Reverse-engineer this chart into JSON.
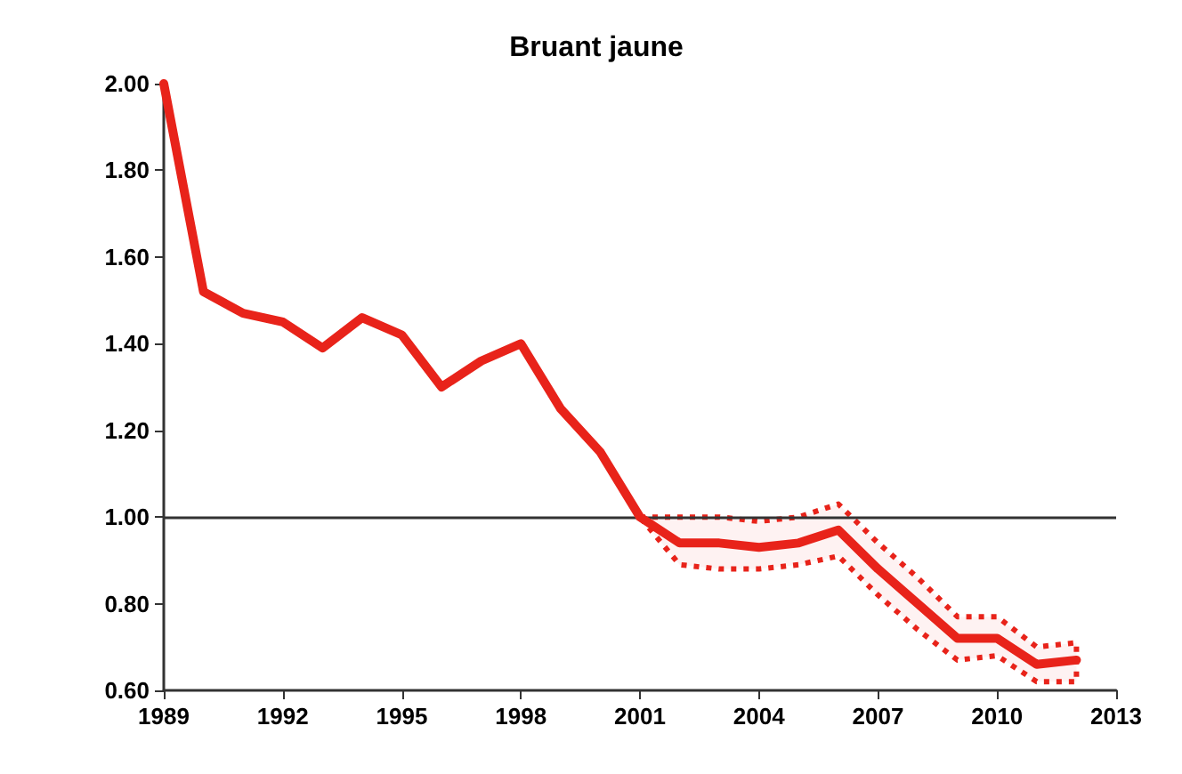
{
  "chart_data": {
    "type": "line",
    "title": "Bruant jaune",
    "x": [
      1989,
      1990,
      1991,
      1992,
      1993,
      1994,
      1995,
      1996,
      1997,
      1998,
      1999,
      2000,
      2001,
      2002,
      2003,
      2004,
      2005,
      2006,
      2007,
      2008,
      2009,
      2010,
      2011,
      2012
    ],
    "series": [
      {
        "color": "#e8231a",
        "values": [
          2.0,
          1.52,
          1.47,
          1.45,
          1.39,
          1.46,
          1.42,
          1.3,
          1.36,
          1.4,
          1.25,
          1.15,
          1.0,
          0.94,
          0.94,
          0.93,
          0.94,
          0.97,
          0.88,
          0.8,
          0.72,
          0.72,
          0.66,
          0.67
        ],
        "lower": [
          null,
          null,
          null,
          null,
          null,
          null,
          null,
          null,
          null,
          null,
          null,
          null,
          1.0,
          0.89,
          0.88,
          0.88,
          0.89,
          0.91,
          0.82,
          0.74,
          0.67,
          0.68,
          0.62,
          0.62
        ],
        "upper": [
          null,
          null,
          null,
          null,
          null,
          null,
          null,
          null,
          null,
          null,
          null,
          null,
          1.0,
          1.0,
          1.0,
          0.99,
          1.0,
          1.03,
          0.94,
          0.86,
          0.77,
          0.77,
          0.7,
          0.71
        ]
      }
    ],
    "xlim": [
      1989,
      2013
    ],
    "xticks": [
      1989,
      1992,
      1995,
      1998,
      2001,
      2004,
      2007,
      2010,
      2013
    ],
    "ylim": [
      0.6,
      2.0
    ],
    "yticks": [
      {
        "value": 0.6,
        "label": "0.60"
      },
      {
        "value": 0.8,
        "label": "0.80"
      },
      {
        "value": 1.0,
        "label": "1.00"
      },
      {
        "value": 1.2,
        "label": "1.20"
      },
      {
        "value": 1.4,
        "label": "1.40"
      },
      {
        "value": 1.6,
        "label": "1.60"
      },
      {
        "value": 1.8,
        "label": "1.80"
      },
      {
        "value": 2.0,
        "label": "2.00"
      }
    ],
    "ref_lines": [
      {
        "axis": "y",
        "value": 1.0,
        "color": "#333333"
      }
    ],
    "grid": false,
    "marker": "none",
    "line_style": "solid"
  }
}
